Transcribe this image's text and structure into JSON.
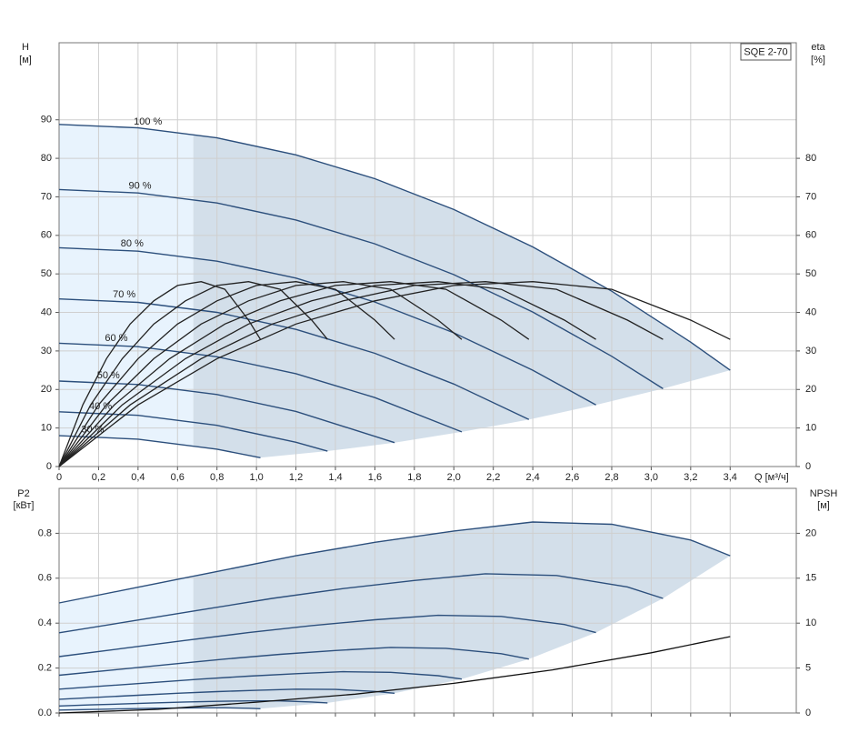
{
  "chart_data": [
    {
      "type": "line",
      "title": "SQE 2-70",
      "ylabel": "H",
      "yunit": "[м]",
      "y2label": "eta",
      "y2unit": "[%]",
      "xlabel": "Q [м³/ч]",
      "xlim": [
        0,
        3.735
      ],
      "ylim": [
        0,
        110
      ],
      "y2lim": [
        0,
        110
      ],
      "grid": true,
      "light_region_end": 0.68,
      "light_fill": "#e8f3fd",
      "fill": "#d3dfea",
      "xticks": [
        0,
        {
          "value": 0.2,
          "label": "0,2"
        },
        {
          "value": 0.4,
          "label": "0,4"
        },
        {
          "value": 0.6,
          "label": "0,6"
        },
        {
          "value": 0.8,
          "label": "0,8"
        },
        {
          "value": 1.0,
          "label": "1,0"
        },
        {
          "value": 1.2,
          "label": "1,2"
        },
        {
          "value": 1.4,
          "label": "1,4"
        },
        {
          "value": 1.6,
          "label": "1,6"
        },
        {
          "value": 1.8,
          "label": "1,8"
        },
        {
          "value": 2.0,
          "label": "2,0"
        },
        {
          "value": 2.2,
          "label": "2,2"
        },
        {
          "value": 2.4,
          "label": "2,4"
        },
        {
          "value": 2.6,
          "label": "2,6"
        },
        {
          "value": 2.8,
          "label": "2,8"
        },
        {
          "value": 3.0,
          "label": "3,0"
        },
        {
          "value": 3.2,
          "label": "3,2"
        },
        {
          "value": 3.4,
          "label": "3,4"
        }
      ],
      "yticks": [
        0,
        10,
        20,
        30,
        40,
        50,
        60,
        70,
        80,
        90
      ],
      "y2ticks": [
        0,
        10,
        20,
        30,
        40,
        50,
        60,
        70,
        80
      ],
      "series": [
        {
          "name": "100 %",
          "color": "#2c4f7c",
          "x": [
            0,
            0.4,
            0.8,
            1.2,
            1.6,
            2.0,
            2.4,
            2.8,
            3.2,
            3.4
          ],
          "values": [
            88.8,
            87.9,
            85.3,
            80.9,
            74.7,
            66.7,
            57.0,
            45.5,
            32.3,
            25.0
          ]
        },
        {
          "name": "90 %",
          "color": "#2c4f7c",
          "x": [
            0,
            0.4,
            0.8,
            1.2,
            1.6,
            2.0,
            2.4,
            2.8,
            3.06
          ],
          "values": [
            71.9,
            71.0,
            68.4,
            64.0,
            57.8,
            49.8,
            40.1,
            28.6,
            20.2
          ]
        },
        {
          "name": "80 %",
          "color": "#2c4f7c",
          "x": [
            0,
            0.4,
            0.8,
            1.2,
            1.6,
            2.0,
            2.4,
            2.72
          ],
          "values": [
            56.8,
            55.9,
            53.3,
            48.9,
            42.7,
            34.7,
            25.0,
            16.0
          ]
        },
        {
          "name": "70 %",
          "color": "#2c4f7c",
          "x": [
            0,
            0.4,
            0.8,
            1.2,
            1.6,
            2.0,
            2.38
          ],
          "values": [
            43.5,
            42.6,
            40.0,
            35.6,
            29.4,
            21.4,
            12.2
          ]
        },
        {
          "name": "60 %",
          "color": "#2c4f7c",
          "x": [
            0,
            0.4,
            0.8,
            1.2,
            1.6,
            2.04
          ],
          "values": [
            32.0,
            31.1,
            28.5,
            24.1,
            17.9,
            9.0
          ]
        },
        {
          "name": "50 %",
          "color": "#2c4f7c",
          "x": [
            0,
            0.4,
            0.8,
            1.2,
            1.7
          ],
          "values": [
            22.2,
            21.3,
            18.7,
            14.3,
            6.2
          ]
        },
        {
          "name": "40 %",
          "color": "#2c4f7c",
          "x": [
            0,
            0.4,
            0.8,
            1.2,
            1.36
          ],
          "values": [
            14.2,
            13.3,
            10.7,
            6.3,
            4.0
          ]
        },
        {
          "name": "30 %",
          "color": "#2c4f7c",
          "x": [
            0,
            0.4,
            0.8,
            1.02
          ],
          "values": [
            8.0,
            7.1,
            4.5,
            2.3
          ]
        },
        {
          "axis": "y2",
          "color": "#222222",
          "x": [
            0,
            0.4,
            0.8,
            1.2,
            1.6,
            2.0,
            2.4,
            2.8,
            3.2,
            3.4
          ],
          "values": [
            0,
            16,
            28,
            37,
            43,
            47,
            48,
            46,
            38,
            33
          ]
        },
        {
          "axis": "y2",
          "color": "#222222",
          "x": [
            0,
            0.36,
            0.72,
            1.08,
            1.44,
            1.8,
            2.16,
            2.52,
            2.88,
            3.06
          ],
          "values": [
            0,
            16,
            28,
            37,
            43,
            47,
            48,
            46,
            38,
            33
          ]
        },
        {
          "axis": "y2",
          "color": "#222222",
          "x": [
            0,
            0.32,
            0.64,
            0.96,
            1.28,
            1.6,
            1.92,
            2.24,
            2.56,
            2.72
          ],
          "values": [
            0,
            16,
            28,
            37,
            43,
            47,
            48,
            46,
            38,
            33
          ]
        },
        {
          "axis": "y2",
          "color": "#222222",
          "x": [
            0,
            0.28,
            0.56,
            0.84,
            1.12,
            1.4,
            1.68,
            1.96,
            2.24,
            2.38
          ],
          "values": [
            0,
            16,
            28,
            37,
            43,
            47,
            48,
            46,
            38,
            33
          ]
        },
        {
          "axis": "y2",
          "color": "#222222",
          "x": [
            0,
            0.24,
            0.48,
            0.72,
            0.96,
            1.2,
            1.44,
            1.68,
            1.92,
            2.04
          ],
          "values": [
            0,
            16,
            28,
            37,
            43,
            47,
            48,
            46,
            38,
            33
          ]
        },
        {
          "axis": "y2",
          "color": "#222222",
          "x": [
            0,
            0.2,
            0.4,
            0.6,
            0.8,
            1.0,
            1.2,
            1.4,
            1.6,
            1.7
          ],
          "values": [
            0,
            16,
            28,
            37,
            43,
            47,
            48,
            46,
            38,
            33
          ]
        },
        {
          "axis": "y2",
          "color": "#222222",
          "x": [
            0,
            0.16,
            0.32,
            0.48,
            0.64,
            0.8,
            0.96,
            1.12,
            1.28,
            1.36
          ],
          "values": [
            0,
            16,
            28,
            37,
            43,
            47,
            48,
            46,
            38,
            33
          ]
        },
        {
          "axis": "y2",
          "color": "#222222",
          "x": [
            0,
            0.12,
            0.24,
            0.36,
            0.48,
            0.6,
            0.72,
            0.84,
            0.96,
            1.02
          ],
          "values": [
            0,
            16,
            28,
            37,
            43,
            47,
            48,
            46,
            38,
            33
          ]
        }
      ]
    },
    {
      "type": "line",
      "ylabel": "P2",
      "yunit": "[кВт]",
      "y2label": "NPSH",
      "y2unit": "[м]",
      "xlim": [
        0,
        3.735
      ],
      "ylim": [
        0,
        1.0
      ],
      "y2lim": [
        0,
        25
      ],
      "grid": true,
      "light_region_end": 0.68,
      "light_fill": "#e8f3fd",
      "fill": "#d3dfea",
      "yticks": [
        {
          "value": 0,
          "label": "0.0"
        },
        0.2,
        0.4,
        0.6,
        0.8
      ],
      "y2ticks": [
        0,
        5,
        10,
        15,
        20
      ],
      "series": [
        {
          "color": "#2c4f7c",
          "x": [
            0,
            0.4,
            0.8,
            1.2,
            1.6,
            2.0,
            2.4,
            2.8,
            3.2,
            3.4
          ],
          "values": [
            0.49,
            0.56,
            0.63,
            0.7,
            0.76,
            0.81,
            0.85,
            0.84,
            0.77,
            0.7
          ]
        },
        {
          "color": "#2c4f7c",
          "x": [
            0,
            0.36,
            0.72,
            1.08,
            1.44,
            1.8,
            2.16,
            2.52,
            2.88,
            3.06
          ],
          "values": [
            0.357,
            0.408,
            0.459,
            0.51,
            0.554,
            0.59,
            0.62,
            0.612,
            0.561,
            0.51
          ]
        },
        {
          "color": "#2c4f7c",
          "x": [
            0,
            0.32,
            0.64,
            0.96,
            1.28,
            1.6,
            1.92,
            2.24,
            2.56,
            2.72
          ],
          "values": [
            0.251,
            0.287,
            0.323,
            0.358,
            0.389,
            0.415,
            0.435,
            0.43,
            0.394,
            0.358
          ]
        },
        {
          "color": "#2c4f7c",
          "x": [
            0,
            0.28,
            0.56,
            0.84,
            1.12,
            1.4,
            1.68,
            1.96,
            2.24,
            2.38
          ],
          "values": [
            0.168,
            0.192,
            0.216,
            0.24,
            0.261,
            0.278,
            0.292,
            0.288,
            0.264,
            0.24
          ]
        },
        {
          "color": "#2c4f7c",
          "x": [
            0,
            0.24,
            0.48,
            0.72,
            0.96,
            1.2,
            1.44,
            1.68,
            1.92,
            2.04
          ],
          "values": [
            0.106,
            0.121,
            0.136,
            0.151,
            0.164,
            0.175,
            0.184,
            0.181,
            0.166,
            0.151
          ]
        },
        {
          "color": "#2c4f7c",
          "x": [
            0,
            0.2,
            0.4,
            0.6,
            0.8,
            1.0,
            1.2,
            1.4,
            1.6,
            1.7
          ],
          "values": [
            0.061,
            0.07,
            0.079,
            0.088,
            0.095,
            0.101,
            0.106,
            0.105,
            0.096,
            0.088
          ]
        },
        {
          "color": "#2c4f7c",
          "x": [
            0,
            0.16,
            0.32,
            0.48,
            0.64,
            0.8,
            0.96,
            1.12,
            1.28,
            1.36
          ],
          "values": [
            0.031,
            0.036,
            0.04,
            0.045,
            0.049,
            0.052,
            0.054,
            0.054,
            0.049,
            0.045
          ]
        },
        {
          "color": "#2c4f7c",
          "x": [
            0,
            0.12,
            0.24,
            0.36,
            0.48,
            0.6,
            0.72,
            0.84,
            0.96,
            1.02
          ],
          "values": [
            0.013,
            0.015,
            0.017,
            0.019,
            0.021,
            0.022,
            0.023,
            0.023,
            0.021,
            0.019
          ]
        },
        {
          "axis": "y2",
          "color": "#111111",
          "x": [
            0,
            0.5,
            1.0,
            1.5,
            2.0,
            2.5,
            3.0,
            3.4
          ],
          "values": [
            0,
            0.4,
            1.2,
            2.1,
            3.3,
            4.8,
            6.7,
            8.5
          ]
        }
      ]
    }
  ]
}
